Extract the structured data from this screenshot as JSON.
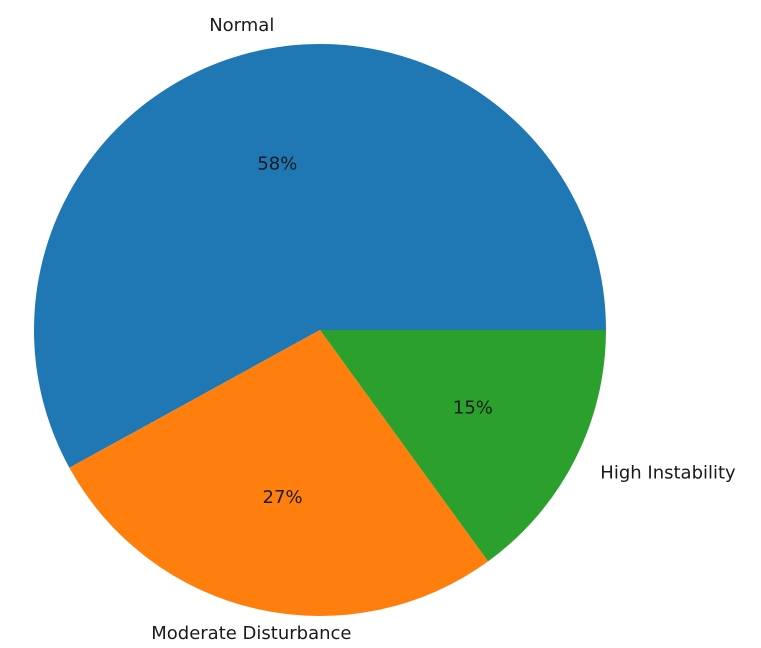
{
  "chart_data": {
    "type": "pie",
    "title": "",
    "slices": [
      {
        "label": "Normal",
        "value": 58,
        "pct_label": "58%",
        "color": "#1f77b4"
      },
      {
        "label": "Moderate Disturbance",
        "value": 27,
        "pct_label": "27%",
        "color": "#ff7f0e"
      },
      {
        "label": "High Instability",
        "value": 15,
        "pct_label": "15%",
        "color": "#2ca02c"
      }
    ],
    "start_angle_deg": 0,
    "direction": "counterclockwise",
    "legend": "none"
  }
}
